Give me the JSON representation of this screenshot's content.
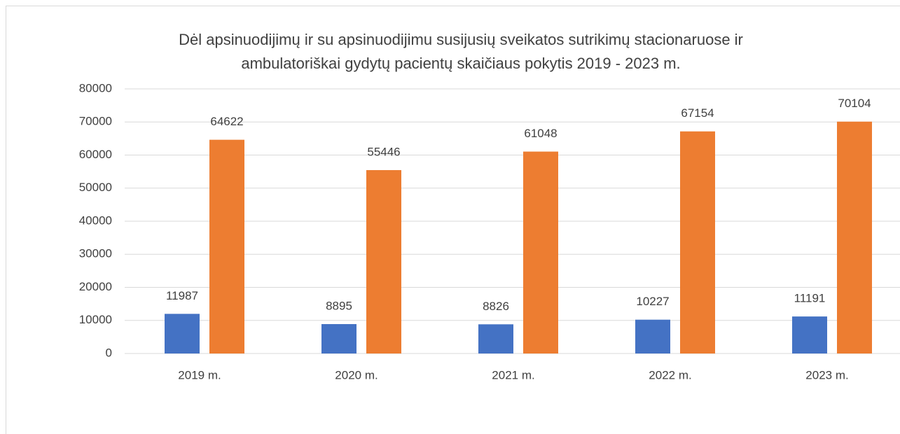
{
  "chart_data": {
    "type": "bar",
    "title": [
      "Dėl apsinuodijimų ir su apsinuodijimu susijusių sveikatos sutrikimų stacionaruose ir",
      "ambulatoriškai gydytų pacientų skaičiaus pokytis 2019 - 2023 m."
    ],
    "categories": [
      "2019 m.",
      "2020 m.",
      "2021 m.",
      "2022 m.",
      "2023 m."
    ],
    "series": [
      {
        "color": "#4472c4",
        "values": [
          11987,
          8895,
          8826,
          10227,
          11191
        ]
      },
      {
        "color": "#ed7d31",
        "values": [
          64622,
          55446,
          61048,
          67154,
          70104
        ]
      }
    ],
    "ylim": [
      0,
      80000
    ],
    "yticks": [
      0,
      10000,
      20000,
      30000,
      40000,
      50000,
      60000,
      70000,
      80000
    ],
    "grid": true
  }
}
